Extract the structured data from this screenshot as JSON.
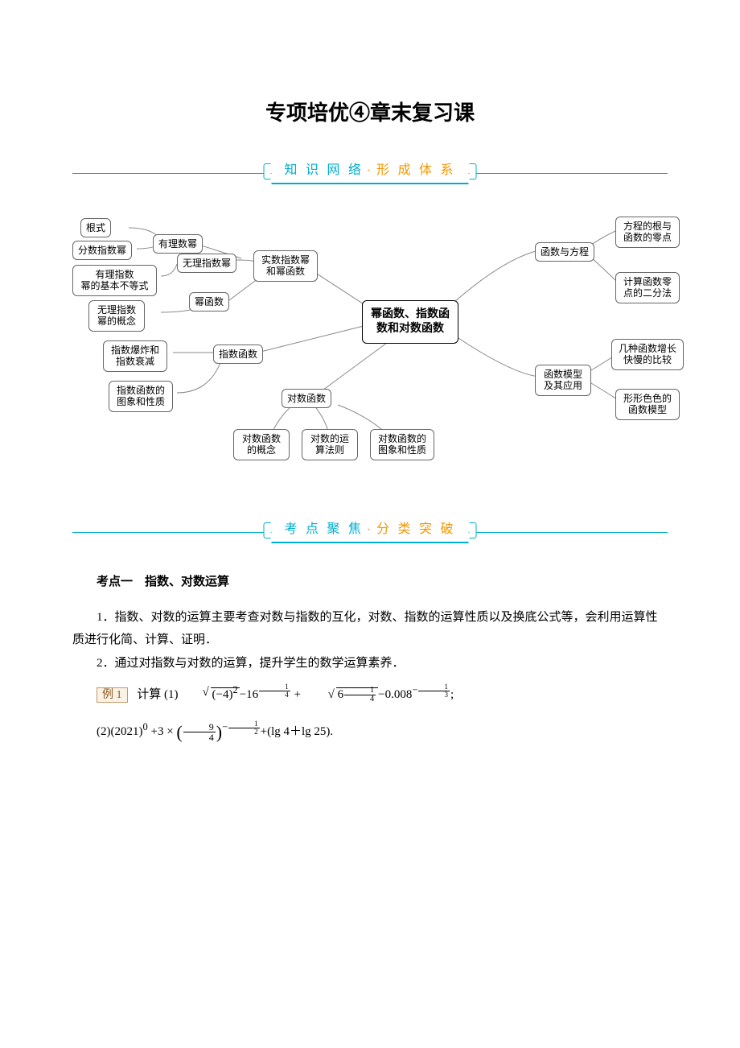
{
  "title": "专项培优④章末复习课",
  "banner1": {
    "left": "知 识 网 络",
    "right": "形 成 体 系"
  },
  "banner2": {
    "left": "考 点 聚 焦",
    "right": "分 类 突 破"
  },
  "diagram": {
    "center": "幂函数、指数函\n数和对数函数",
    "nodes": {
      "n1": "根式",
      "n2": "分数指数幂",
      "n3": "有理数幂",
      "n4": "有理指数\n幂的基本不等式",
      "n5": "无理指数幂",
      "n6": "实数指数幂\n和幂函数",
      "n7": "无理指数\n幂的概念",
      "n8": "幂函数",
      "n9": "指数爆炸和\n指数衰减",
      "n10": "指数函数",
      "n11": "指数函数的\n图象和性质",
      "n12": "对数函数",
      "n13": "对数函数\n的概念",
      "n14": "对数的运\n算法则",
      "n15": "对数函数的\n图象和性质",
      "n16": "函数与方程",
      "n17": "方程的根与\n函数的零点",
      "n18": "计算函数零\n点的二分法",
      "n19": "函数模型\n及其应用",
      "n20": "几种函数增长\n快慢的比较",
      "n21": "形形色色的\n函数模型"
    }
  },
  "content": {
    "h1": "考点一　指数、对数运算",
    "p1": "1．指数、对数的运算主要考查对数与指数的互化，对数、指数的运算性质以及换底公式等，会利用运算性质进行化简、计算、证明．",
    "p2": "2．通过对指数与对数的运算，提升学生的数学运算素养．",
    "ex_label": "例 1",
    "ex_intro": "计算",
    "eq1_a": "(1)",
    "eq2_a": "(2)(2021)",
    "lg": "(lg 4＋lg 25)."
  },
  "colors": {
    "accent": "#00aecd",
    "orange": "#f39800",
    "node_border": "#666666",
    "connector": "#888888",
    "example_bg": "#faf2e6",
    "example_border": "#c49a6c",
    "example_text": "#8a5a1e"
  }
}
